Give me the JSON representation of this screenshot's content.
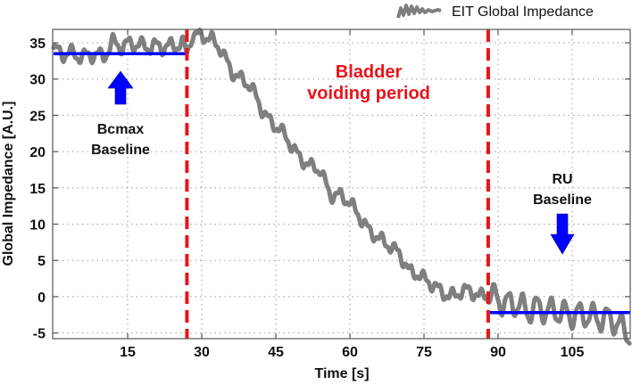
{
  "chart_data": {
    "type": "line",
    "title": "",
    "xlabel": "Time [s]",
    "ylabel": "Global Impedance [A.U.]",
    "xlim": [
      0,
      117
    ],
    "ylim": [
      -6,
      37
    ],
    "xticks": [
      15,
      30,
      45,
      60,
      75,
      90,
      105
    ],
    "yticks": [
      -5,
      0,
      5,
      10,
      15,
      20,
      25,
      30,
      35
    ],
    "grid": true,
    "legend": {
      "position": "top-right",
      "entries": [
        "EIT Global Impedance"
      ]
    },
    "series": [
      {
        "name": "EIT Global Impedance",
        "color": "#7f7f7f",
        "x": [
          0,
          2,
          4,
          6,
          8,
          10,
          12,
          14,
          16,
          18,
          20,
          22,
          24,
          26,
          27,
          28,
          30,
          32,
          34,
          36,
          38,
          40,
          42,
          44,
          46,
          48,
          50,
          52,
          54,
          56,
          58,
          60,
          62,
          64,
          66,
          68,
          70,
          72,
          74,
          76,
          78,
          80,
          82,
          84,
          86,
          88,
          90,
          92,
          94,
          96,
          98,
          100,
          102,
          104,
          106,
          108,
          110,
          112,
          114,
          116
        ],
        "y": [
          34,
          33.5,
          33.5,
          33,
          33.5,
          33,
          35,
          34.5,
          35,
          34.5,
          34.5,
          34.5,
          34.5,
          35,
          33.5,
          36,
          36,
          35.5,
          34,
          31,
          30,
          29,
          26,
          24,
          23,
          21,
          19,
          18,
          17.5,
          14,
          14,
          13,
          11,
          9,
          8,
          7,
          6,
          3.5,
          3,
          2,
          1,
          0,
          0.5,
          1,
          0,
          0.5,
          -0.5,
          -1,
          -1,
          -2,
          -1.5,
          -2,
          -2,
          -2.5,
          -2.5,
          -2.5,
          -3,
          -3,
          -3.5,
          -5
        ]
      },
      {
        "name": "Bcmax Baseline",
        "color": "#0000ff",
        "x": [
          0,
          27
        ],
        "y": [
          33.5,
          33.5
        ]
      },
      {
        "name": "RU Baseline",
        "color": "#0000ff",
        "x": [
          88,
          117
        ],
        "y": [
          -2.2,
          -2.2
        ]
      }
    ],
    "vertical_lines": [
      {
        "x": 27,
        "style": "dashed",
        "color": "#e8141b"
      },
      {
        "x": 88,
        "style": "dashed",
        "color": "#e8141b"
      }
    ],
    "annotations": [
      {
        "text": "Bcmax Baseline",
        "x": 13,
        "y": 17,
        "arrow": "up",
        "color": "#0000ff"
      },
      {
        "text": "Bladder voiding period",
        "x": 57,
        "y": 30,
        "color": "#e8141b"
      },
      {
        "text": "RU Baseline",
        "x": 105,
        "y": 7,
        "arrow": "down",
        "color": "#0000ff"
      }
    ]
  },
  "labels": {
    "xlabel": "Time [s]",
    "ylabel": "Global Impedance [A.U.]",
    "legend": "EIT Global Impedance",
    "bcmax_line1": "Bcmax",
    "bcmax_line2": "Baseline",
    "voiding_line1": "Bladder",
    "voiding_line2": "voiding period",
    "ru_line1": "RU",
    "ru_line2": "Baseline"
  },
  "colors": {
    "signal": "#7f7f7f",
    "baseline": "#0000ff",
    "marker": "#e8141b"
  }
}
